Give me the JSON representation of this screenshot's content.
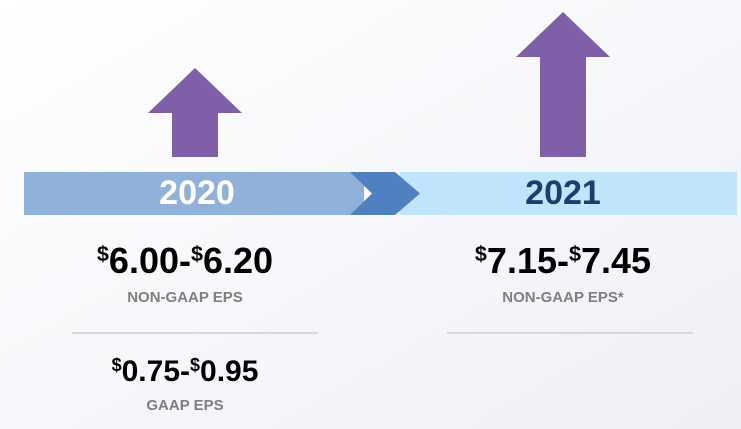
{
  "periods": [
    {
      "year": "2020",
      "guidance": [
        {
          "currency": "$",
          "low": "6.00",
          "separator": "-",
          "high": "6.20",
          "label": "NON-GAAP EPS"
        },
        {
          "currency": "$",
          "low": "0.75",
          "separator": "-",
          "high": "0.95",
          "label": "GAAP EPS"
        }
      ]
    },
    {
      "year": "2021",
      "guidance": [
        {
          "currency": "$",
          "low": "7.15",
          "separator": "-",
          "high": "7.45",
          "label": "NON-GAAP EPS*"
        }
      ]
    }
  ]
}
